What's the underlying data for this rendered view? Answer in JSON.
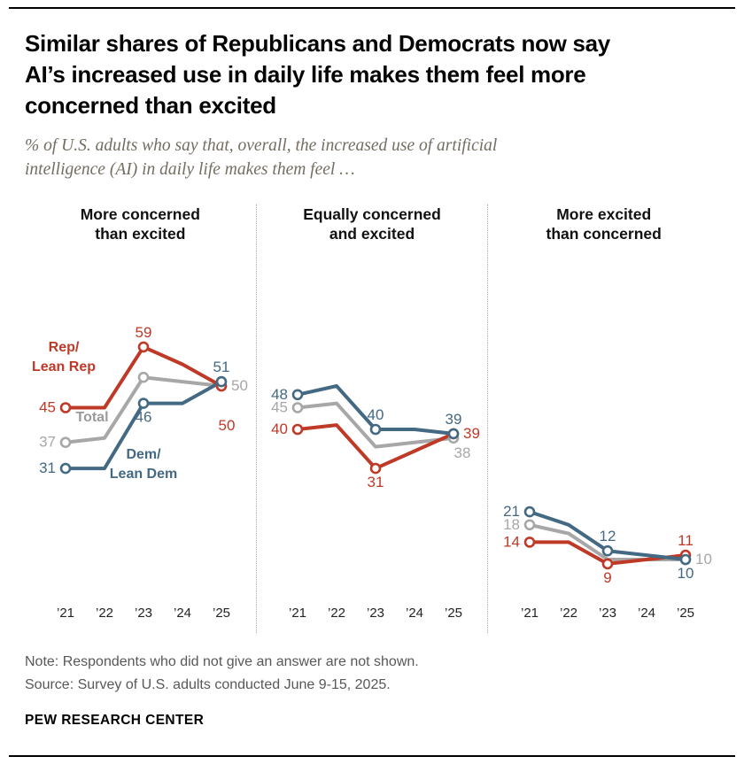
{
  "header": {
    "title_lines": [
      "Similar shares of Republicans and Democrats now say",
      "AI’s increased use in daily life makes them feel more",
      "concerned than excited"
    ],
    "subtitle_lines": [
      "% of U.S. adults who say that, overall, the increased use of artificial",
      "intelligence (AI) in daily life makes them feel …"
    ]
  },
  "colors": {
    "rep": "#bf3927",
    "dem": "#436983",
    "total": "#a7a7a7",
    "total_label": "#9a9a9a",
    "axis_text": "#222222",
    "separator": "#b5b0a7"
  },
  "x_labels": [
    "’21",
    "’22",
    "’23",
    "’24",
    "’25"
  ],
  "legend": {
    "rep": "Rep/Lean Rep",
    "total": "Total",
    "dem": "Dem/Lean Dem"
  },
  "chart_data": [
    {
      "type": "line",
      "title": [
        "More concerned",
        "than excited"
      ],
      "x": [
        "2021",
        "2022",
        "2023",
        "2024",
        "2025"
      ],
      "ylim": [
        0,
        65
      ],
      "grid": false,
      "series": [
        {
          "name": "Total",
          "color_key": "total",
          "values": [
            37,
            38,
            52,
            51,
            50
          ],
          "markers": [
            0,
            2,
            4
          ],
          "labels": {
            "0": {
              "text": "37",
              "pos": "left"
            },
            "4": {
              "text": "50",
              "pos": "right"
            }
          }
        },
        {
          "name": "Rep/Lean Rep",
          "color_key": "rep",
          "values": [
            45,
            45,
            59,
            55,
            50
          ],
          "markers": [
            0,
            2,
            4
          ],
          "labels": {
            "0": {
              "text": "45",
              "pos": "left"
            },
            "2": {
              "text": "59",
              "pos": "above"
            },
            "4": {
              "text": "50",
              "pos": "below-far"
            }
          }
        },
        {
          "name": "Dem/Lean Dem",
          "color_key": "dem",
          "values": [
            31,
            31,
            46,
            46,
            51
          ],
          "markers": [
            0,
            2,
            4
          ],
          "labels": {
            "0": {
              "text": "31",
              "pos": "left"
            },
            "2": {
              "text": "46",
              "pos": "below"
            },
            "4": {
              "text": "51",
              "pos": "above"
            }
          }
        }
      ],
      "annotations": [
        {
          "lines": [
            "Rep/",
            "Lean Rep"
          ],
          "color_key": "rep",
          "x": 44,
          "y": 112
        },
        {
          "lines": [
            "Total"
          ],
          "color_key": "total_label",
          "x": 76,
          "y": 191
        },
        {
          "lines": [
            "Dem/",
            "Lean Dem"
          ],
          "color_key": "dem",
          "x": 134,
          "y": 233
        }
      ]
    },
    {
      "type": "line",
      "title": [
        "Equally concerned",
        "and excited"
      ],
      "x": [
        "2021",
        "2022",
        "2023",
        "2024",
        "2025"
      ],
      "ylim": [
        0,
        65
      ],
      "grid": false,
      "series": [
        {
          "name": "Total",
          "color_key": "total",
          "values": [
            45,
            46,
            36,
            37,
            38
          ],
          "markers": [
            0,
            4
          ],
          "labels": {
            "0": {
              "text": "45",
              "pos": "left"
            },
            "4": {
              "text": "38",
              "pos": "below-right"
            }
          }
        },
        {
          "name": "Rep/Lean Rep",
          "color_key": "rep",
          "values": [
            40,
            41,
            31,
            35,
            39
          ],
          "markers": [
            0,
            2,
            4
          ],
          "labels": {
            "0": {
              "text": "40",
              "pos": "left"
            },
            "2": {
              "text": "31",
              "pos": "below"
            },
            "4": {
              "text": "39",
              "pos": "right"
            }
          }
        },
        {
          "name": "Dem/Lean Dem",
          "color_key": "dem",
          "values": [
            48,
            50,
            40,
            40,
            39
          ],
          "markers": [
            0,
            2,
            4
          ],
          "labels": {
            "0": {
              "text": "48",
              "pos": "left"
            },
            "2": {
              "text": "40",
              "pos": "above"
            },
            "4": {
              "text": "39",
              "pos": "above"
            }
          }
        }
      ],
      "annotations": []
    },
    {
      "type": "line",
      "title": [
        "More excited",
        "than concerned"
      ],
      "x": [
        "2021",
        "2022",
        "2023",
        "2024",
        "2025"
      ],
      "ylim": [
        0,
        65
      ],
      "grid": false,
      "series": [
        {
          "name": "Total",
          "color_key": "total",
          "values": [
            18,
            16,
            10,
            10,
            10
          ],
          "markers": [
            0,
            4
          ],
          "labels": {
            "0": {
              "text": "18",
              "pos": "left"
            },
            "4": {
              "text": "10",
              "pos": "right"
            }
          }
        },
        {
          "name": "Rep/Lean Rep",
          "color_key": "rep",
          "values": [
            14,
            14,
            9,
            10,
            11
          ],
          "markers": [
            0,
            2,
            4
          ],
          "labels": {
            "0": {
              "text": "14",
              "pos": "left"
            },
            "2": {
              "text": "9",
              "pos": "below"
            },
            "4": {
              "text": "11",
              "pos": "above"
            }
          }
        },
        {
          "name": "Dem/Lean Dem",
          "color_key": "dem",
          "values": [
            21,
            18,
            12,
            11,
            10
          ],
          "markers": [
            0,
            2,
            4
          ],
          "labels": {
            "0": {
              "text": "21",
              "pos": "left"
            },
            "2": {
              "text": "12",
              "pos": "above"
            },
            "4": {
              "text": "10",
              "pos": "below"
            }
          }
        }
      ],
      "annotations": []
    }
  ],
  "notes": {
    "note": "Note: Respondents who did not give an answer are not shown.",
    "source": "Source: Survey of U.S. adults conducted June 9-15, 2025.",
    "footer": "PEW RESEARCH CENTER"
  }
}
